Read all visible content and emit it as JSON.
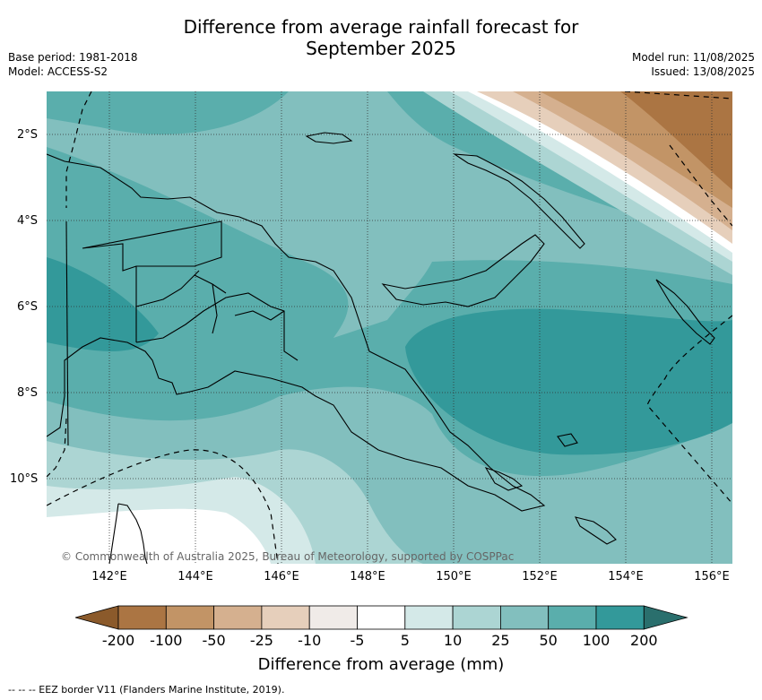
{
  "title_line1": "Difference from average rainfall forecast for",
  "title_line2": "September 2025",
  "base_period": "Base period: 1981-2018",
  "model": "Model: ACCESS-S2",
  "model_run": "Model run: 11/08/2025",
  "issued": "Issued: 13/08/2025",
  "copyright": "© Commonwealth of Australia 2025, Bureau of Meteorology, supported by COSPPac",
  "lat_labels": [
    "2°S",
    "4°S",
    "6°S",
    "8°S",
    "10°S"
  ],
  "lon_labels": [
    "142°E",
    "144°E",
    "146°E",
    "148°E",
    "150°E",
    "152°E",
    "154°E",
    "156°E"
  ],
  "colorbar": {
    "title": "Difference from average (mm)",
    "tick_labels": [
      "-200",
      "-100",
      "-50",
      "-25",
      "-10",
      "-5",
      "5",
      "10",
      "25",
      "50",
      "100",
      "200"
    ],
    "colors": [
      "#8b5a2b",
      "#ab7543",
      "#c29466",
      "#d5b08f",
      "#e6cfbb",
      "#f0ebe8",
      "#ffffff",
      "#d4e9e8",
      "#acd5d3",
      "#82bfbe",
      "#5aaeac",
      "#33999a",
      "#2a6f6d"
    ]
  },
  "footnote": "-- -- -- EEZ border V11 (Flanders Marine Institute, 2019)."
}
